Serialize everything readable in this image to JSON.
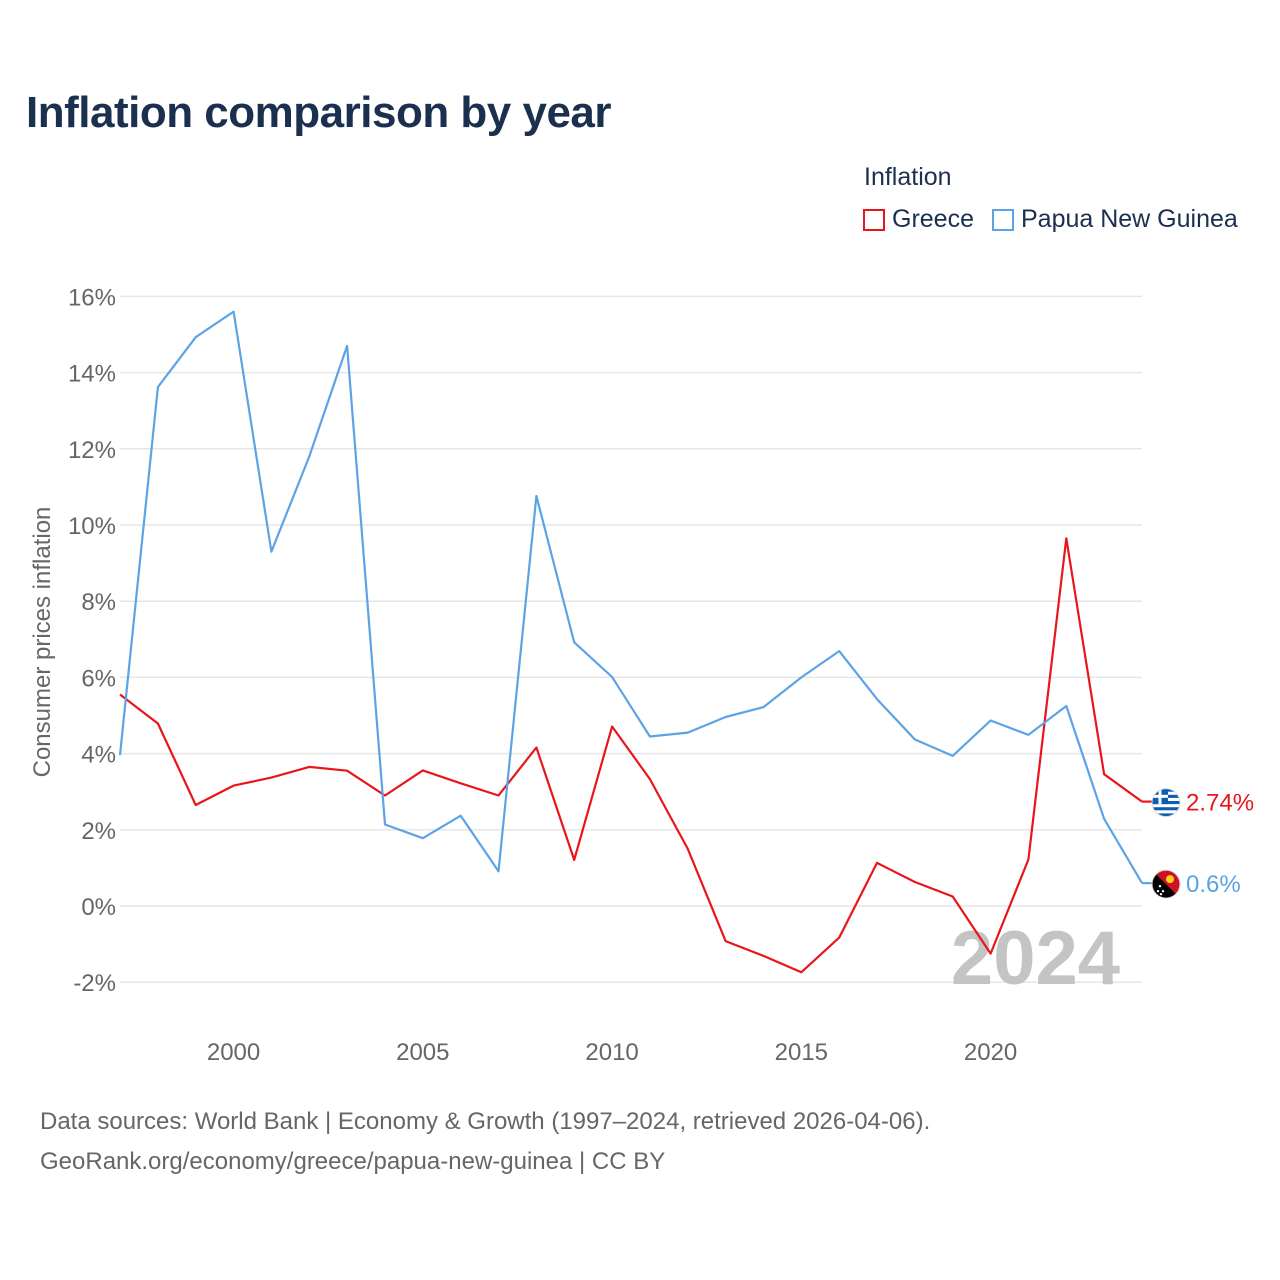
{
  "title": "Inflation comparison by year",
  "legend": {
    "title": "Inflation",
    "items": [
      {
        "label": "Greece",
        "color": "#e8161b"
      },
      {
        "label": "Papua New Guinea",
        "color": "#5ca3e6"
      }
    ]
  },
  "footer": {
    "sources": "Data sources: World Bank | Economy & Growth (1997–2024, retrieved 2026-04-06).",
    "credit": "GeoRank.org/economy/greece/papua-new-guinea | CC BY"
  },
  "chart_data": {
    "type": "line",
    "title": "Inflation comparison by year",
    "ylabel": "Consumer prices inflation",
    "xlabel": "",
    "xlim": [
      1997,
      2024
    ],
    "ylim": [
      -3,
      16.5
    ],
    "yticks": [
      -2,
      0,
      2,
      4,
      6,
      8,
      10,
      12,
      14,
      16
    ],
    "ytick_labels": [
      "-2%",
      "0%",
      "2%",
      "4%",
      "6%",
      "8%",
      "10%",
      "12%",
      "14%",
      "16%"
    ],
    "xticks": [
      2000,
      2005,
      2010,
      2015,
      2020
    ],
    "xtick_labels": [
      "2000",
      "2005",
      "2010",
      "2015",
      "2020"
    ],
    "watermark": "2024",
    "grid": true,
    "x": [
      1997,
      1998,
      1999,
      2000,
      2001,
      2002,
      2003,
      2004,
      2005,
      2006,
      2007,
      2008,
      2009,
      2010,
      2011,
      2012,
      2013,
      2014,
      2015,
      2016,
      2017,
      2018,
      2019,
      2020,
      2021,
      2022,
      2023,
      2024
    ],
    "series": [
      {
        "name": "Greece",
        "color": "#e8161b",
        "end_label": "2.74%",
        "flag_icon": "greece-flag-icon",
        "values": [
          5.55,
          4.79,
          2.65,
          3.16,
          3.37,
          3.65,
          3.55,
          2.9,
          3.56,
          3.22,
          2.9,
          4.16,
          1.21,
          4.71,
          3.33,
          1.5,
          -0.92,
          -1.31,
          -1.74,
          -0.83,
          1.13,
          0.63,
          0.25,
          -1.25,
          1.22,
          9.65,
          3.46,
          2.74
        ]
      },
      {
        "name": "Papua New Guinea",
        "color": "#5ca3e6",
        "end_label": "0.6%",
        "flag_icon": "papua-new-guinea-flag-icon",
        "values": [
          3.96,
          13.62,
          14.93,
          15.6,
          9.3,
          11.8,
          14.7,
          2.14,
          1.78,
          2.37,
          0.91,
          10.76,
          6.92,
          6.01,
          4.45,
          4.55,
          4.96,
          5.22,
          6.0,
          6.69,
          5.43,
          4.37,
          3.94,
          4.87,
          4.49,
          5.25,
          2.29,
          0.6
        ]
      }
    ]
  }
}
